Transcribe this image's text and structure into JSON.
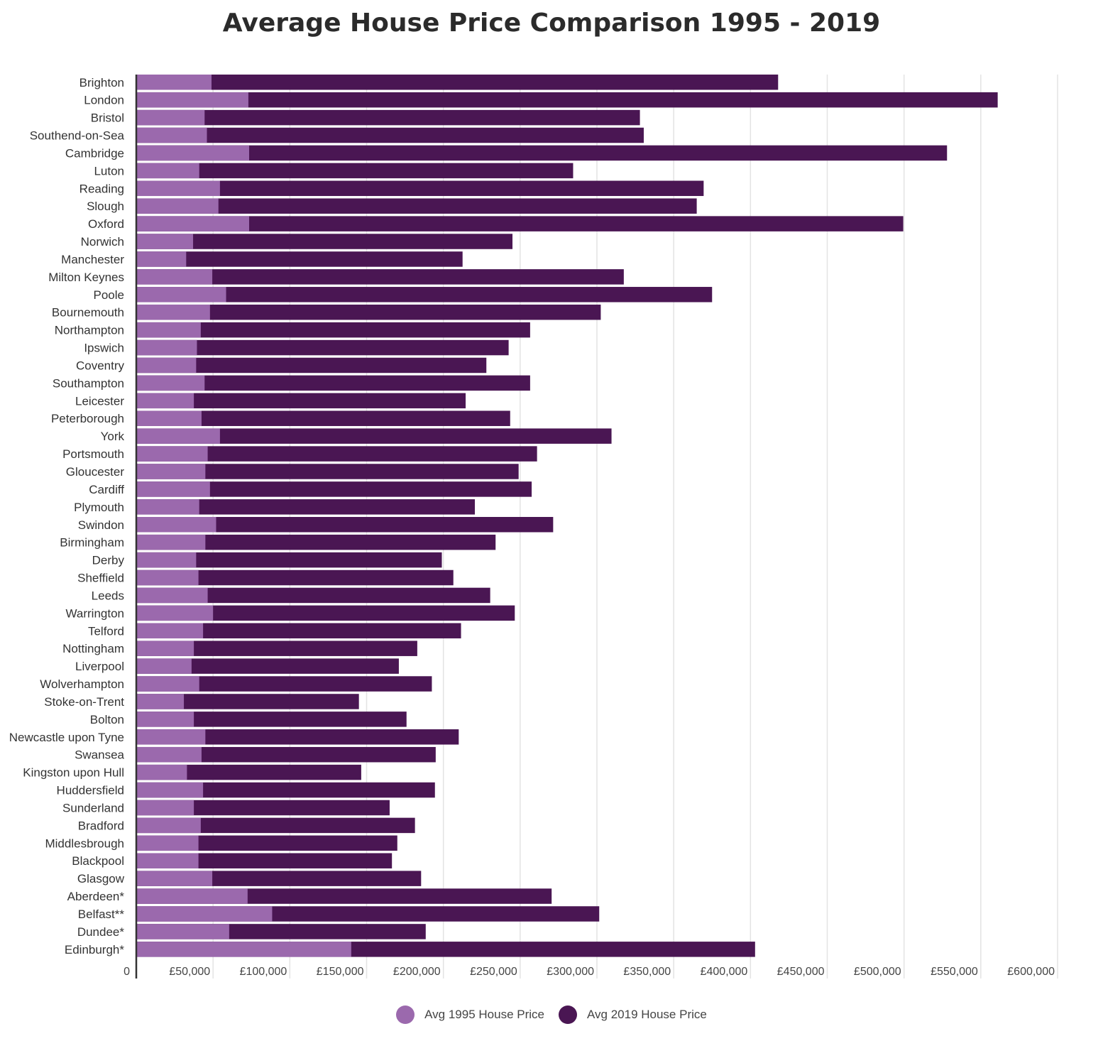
{
  "chart_data": {
    "type": "bar",
    "orientation": "horizontal",
    "title": "Average House Price Comparison 1995 - 2019",
    "xlabel": "",
    "ylabel": "",
    "xlim": [
      0,
      600000
    ],
    "x_tick_values": [
      0,
      50000,
      100000,
      150000,
      200000,
      250000,
      300000,
      350000,
      400000,
      450000,
      500000,
      550000,
      600000
    ],
    "x_tick_labels": [
      "0",
      "£50,000",
      "£100,000",
      "£150,000",
      "£200,000",
      "£250,000",
      "£300,000",
      "£350,000",
      "£400,000",
      "£450,000",
      "£500,000",
      "£550,000",
      "£600,000"
    ],
    "grid": true,
    "legend_position": "bottom-center",
    "categories": [
      "Brighton",
      "London",
      "Bristol",
      "Southend-on-Sea",
      "Cambridge",
      "Luton",
      "Reading",
      "Slough",
      "Oxford",
      "Norwich",
      "Manchester",
      "Milton Keynes",
      "Poole",
      "Bournemouth",
      "Northampton",
      "Ipswich",
      "Coventry",
      "Southampton",
      "Leicester",
      "Peterborough",
      "York",
      "Portsmouth",
      "Gloucester",
      "Cardiff",
      "Plymouth",
      "Swindon",
      "Birmingham",
      "Derby",
      "Sheffield",
      "Leeds",
      "Warrington",
      "Telford",
      "Nottingham",
      "Liverpool",
      "Wolverhampton",
      "Stoke-on-Trent",
      "Bolton",
      "Newcastle upon Tyne",
      "Swansea",
      "Kingston upon Hull",
      "Huddersfield",
      "Sunderland",
      "Bradford",
      "Middlesbrough",
      "Blackpool",
      "Glasgow",
      "Aberdeen*",
      "Belfast**",
      "Dundee*",
      "Edinburgh*"
    ],
    "series": [
      {
        "name": "Avg 1995 House Price",
        "color": "#9b69ad",
        "values": [
          49000,
          73000,
          44500,
          46000,
          73500,
          41000,
          54500,
          53500,
          73500,
          37000,
          32500,
          49500,
          58500,
          48000,
          42000,
          39500,
          39000,
          44500,
          37500,
          42500,
          54500,
          46500,
          45000,
          48000,
          41000,
          52000,
          45000,
          39000,
          40500,
          46500,
          50000,
          43500,
          37500,
          36000,
          41000,
          31000,
          37500,
          45000,
          42500,
          33000,
          43500,
          37500,
          42000,
          40500,
          40500,
          49500,
          72500,
          88500,
          60500,
          140000
        ]
      },
      {
        "name": "Avg 2019 House Price",
        "color": "#4a1653",
        "values": [
          418000,
          561000,
          328000,
          330500,
          528000,
          284500,
          369500,
          365000,
          499500,
          245000,
          212500,
          317500,
          375000,
          302500,
          256500,
          242500,
          228000,
          256500,
          214500,
          243500,
          309500,
          261000,
          249000,
          257500,
          220500,
          271500,
          234000,
          199000,
          206500,
          230500,
          246500,
          211500,
          183000,
          171000,
          192500,
          145000,
          176000,
          210000,
          195000,
          146500,
          194500,
          165000,
          181500,
          170000,
          166500,
          185500,
          270500,
          301500,
          188500,
          403000
        ]
      }
    ]
  },
  "legend": {
    "items": [
      {
        "label": "Avg 1995 House Price",
        "color": "#9b69ad"
      },
      {
        "label": "Avg 2019 House Price",
        "color": "#4a1653"
      }
    ]
  }
}
